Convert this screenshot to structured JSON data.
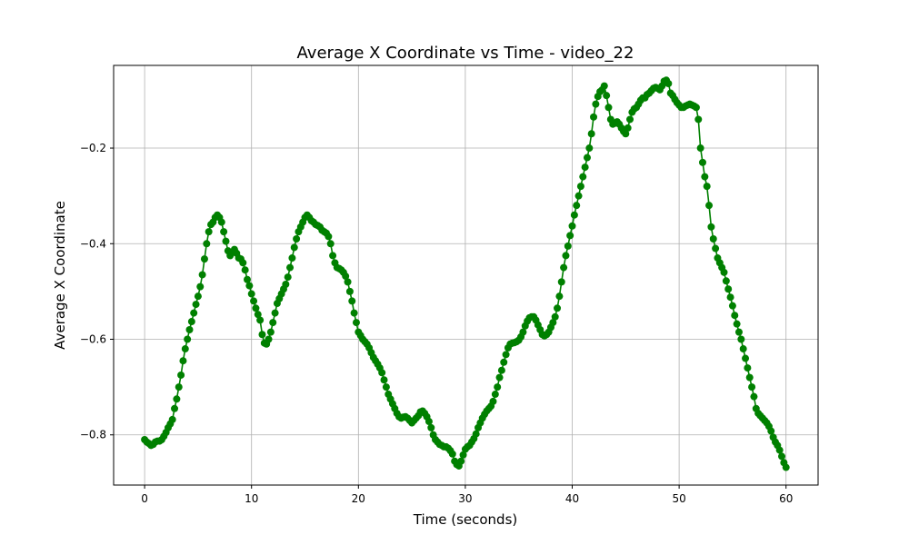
{
  "chart_data": {
    "type": "line",
    "title": "Average X Coordinate vs Time - video_22",
    "xlabel": "Time (seconds)",
    "ylabel": "Average X Coordinate",
    "xlim": [
      -2.9,
      63.0
    ],
    "ylim": [
      -0.905,
      -0.027
    ],
    "xticks": [
      0,
      10,
      20,
      30,
      40,
      50,
      60
    ],
    "yticks": [
      -0.8,
      -0.6,
      -0.4,
      -0.2
    ],
    "xtick_labels": [
      "0",
      "10",
      "20",
      "30",
      "40",
      "50",
      "60"
    ],
    "ytick_labels": [
      "−0.8",
      "−0.6",
      "−0.4",
      "−0.2"
    ],
    "grid": true,
    "series": [
      {
        "color": "#008000",
        "marker": "circle",
        "x": [
          0.0,
          0.2,
          0.4,
          0.6,
          0.8,
          1.0,
          1.2,
          1.4,
          1.6,
          1.8,
          2.0,
          2.2,
          2.4,
          2.6,
          2.8,
          3.0,
          3.2,
          3.4,
          3.6,
          3.8,
          4.0,
          4.2,
          4.4,
          4.6,
          4.8,
          5.0,
          5.2,
          5.4,
          5.6,
          5.8,
          6.0,
          6.2,
          6.4,
          6.6,
          6.8,
          7.0,
          7.2,
          7.4,
          7.6,
          7.8,
          8.0,
          8.2,
          8.4,
          8.6,
          8.8,
          9.0,
          9.2,
          9.4,
          9.6,
          9.8,
          10.0,
          10.2,
          10.4,
          10.6,
          10.8,
          11.0,
          11.2,
          11.4,
          11.6,
          11.8,
          12.0,
          12.2,
          12.4,
          12.6,
          12.8,
          13.0,
          13.2,
          13.4,
          13.6,
          13.8,
          14.0,
          14.2,
          14.4,
          14.6,
          14.8,
          15.0,
          15.2,
          15.4,
          15.6,
          15.8,
          16.0,
          16.2,
          16.4,
          16.6,
          16.8,
          17.0,
          17.2,
          17.4,
          17.6,
          17.8,
          18.0,
          18.2,
          18.4,
          18.6,
          18.8,
          19.0,
          19.2,
          19.4,
          19.6,
          19.8,
          20.0,
          20.2,
          20.4,
          20.6,
          20.8,
          21.0,
          21.2,
          21.4,
          21.6,
          21.8,
          22.0,
          22.2,
          22.4,
          22.6,
          22.8,
          23.0,
          23.2,
          23.4,
          23.6,
          23.8,
          24.0,
          24.2,
          24.4,
          24.6,
          24.8,
          25.0,
          25.2,
          25.4,
          25.6,
          25.8,
          26.0,
          26.2,
          26.4,
          26.6,
          26.8,
          27.0,
          27.2,
          27.4,
          27.6,
          27.8,
          28.0,
          28.2,
          28.4,
          28.6,
          28.8,
          29.0,
          29.2,
          29.4,
          29.6,
          29.8,
          30.0,
          30.2,
          30.4,
          30.6,
          30.8,
          31.0,
          31.2,
          31.4,
          31.6,
          31.8,
          32.0,
          32.2,
          32.4,
          32.6,
          32.8,
          33.0,
          33.2,
          33.4,
          33.6,
          33.8,
          34.0,
          34.2,
          34.4,
          34.6,
          34.8,
          35.0,
          35.2,
          35.4,
          35.6,
          35.8,
          36.0,
          36.2,
          36.4,
          36.6,
          36.8,
          37.0,
          37.2,
          37.4,
          37.6,
          37.8,
          38.0,
          38.2,
          38.4,
          38.6,
          38.8,
          39.0,
          39.2,
          39.4,
          39.6,
          39.8,
          40.0,
          40.2,
          40.4,
          40.6,
          40.8,
          41.0,
          41.2,
          41.4,
          41.6,
          41.8,
          42.0,
          42.2,
          42.4,
          42.6,
          42.8,
          43.0,
          43.2,
          43.4,
          43.6,
          43.8,
          44.0,
          44.2,
          44.4,
          44.6,
          44.8,
          45.0,
          45.2,
          45.4,
          45.6,
          45.8,
          46.0,
          46.2,
          46.4,
          46.6,
          46.8,
          47.0,
          47.2,
          47.4,
          47.6,
          47.8,
          48.0,
          48.2,
          48.4,
          48.6,
          48.8,
          49.0,
          49.2,
          49.4,
          49.6,
          49.8,
          50.0,
          50.2,
          50.4,
          50.6,
          50.8,
          51.0,
          51.2,
          51.4,
          51.6,
          51.8,
          52.0,
          52.2,
          52.4,
          52.6,
          52.8,
          53.0,
          53.2,
          53.4,
          53.6,
          53.8,
          54.0,
          54.2,
          54.4,
          54.6,
          54.8,
          55.0,
          55.2,
          55.4,
          55.6,
          55.8,
          56.0,
          56.2,
          56.4,
          56.6,
          56.8,
          57.0,
          57.2,
          57.4,
          57.6,
          57.8,
          58.0,
          58.2,
          58.4,
          58.6,
          58.8,
          59.0,
          59.2,
          59.4,
          59.6,
          59.8,
          60.0
        ],
        "y": [
          -0.81,
          -0.815,
          -0.818,
          -0.822,
          -0.82,
          -0.815,
          -0.813,
          -0.813,
          -0.81,
          -0.803,
          -0.795,
          -0.785,
          -0.777,
          -0.768,
          -0.745,
          -0.725,
          -0.7,
          -0.675,
          -0.645,
          -0.62,
          -0.6,
          -0.58,
          -0.563,
          -0.545,
          -0.527,
          -0.51,
          -0.49,
          -0.465,
          -0.432,
          -0.4,
          -0.375,
          -0.36,
          -0.355,
          -0.345,
          -0.34,
          -0.345,
          -0.355,
          -0.375,
          -0.395,
          -0.415,
          -0.425,
          -0.418,
          -0.412,
          -0.42,
          -0.43,
          -0.432,
          -0.44,
          -0.455,
          -0.475,
          -0.488,
          -0.505,
          -0.52,
          -0.535,
          -0.548,
          -0.56,
          -0.59,
          -0.608,
          -0.61,
          -0.6,
          -0.585,
          -0.565,
          -0.545,
          -0.525,
          -0.515,
          -0.505,
          -0.495,
          -0.485,
          -0.47,
          -0.45,
          -0.43,
          -0.408,
          -0.39,
          -0.375,
          -0.365,
          -0.355,
          -0.345,
          -0.34,
          -0.345,
          -0.352,
          -0.355,
          -0.36,
          -0.362,
          -0.365,
          -0.372,
          -0.375,
          -0.378,
          -0.385,
          -0.4,
          -0.425,
          -0.44,
          -0.45,
          -0.452,
          -0.455,
          -0.46,
          -0.468,
          -0.48,
          -0.5,
          -0.52,
          -0.545,
          -0.565,
          -0.585,
          -0.592,
          -0.6,
          -0.605,
          -0.61,
          -0.618,
          -0.628,
          -0.638,
          -0.645,
          -0.652,
          -0.66,
          -0.67,
          -0.685,
          -0.7,
          -0.715,
          -0.725,
          -0.735,
          -0.745,
          -0.755,
          -0.762,
          -0.765,
          -0.763,
          -0.762,
          -0.765,
          -0.77,
          -0.775,
          -0.77,
          -0.765,
          -0.76,
          -0.752,
          -0.75,
          -0.755,
          -0.762,
          -0.772,
          -0.785,
          -0.8,
          -0.81,
          -0.815,
          -0.82,
          -0.822,
          -0.825,
          -0.825,
          -0.828,
          -0.833,
          -0.84,
          -0.855,
          -0.862,
          -0.865,
          -0.855,
          -0.842,
          -0.83,
          -0.825,
          -0.822,
          -0.815,
          -0.808,
          -0.798,
          -0.785,
          -0.775,
          -0.765,
          -0.757,
          -0.75,
          -0.745,
          -0.74,
          -0.73,
          -0.715,
          -0.7,
          -0.68,
          -0.665,
          -0.648,
          -0.632,
          -0.618,
          -0.61,
          -0.608,
          -0.607,
          -0.605,
          -0.602,
          -0.595,
          -0.585,
          -0.572,
          -0.562,
          -0.555,
          -0.553,
          -0.553,
          -0.56,
          -0.57,
          -0.58,
          -0.59,
          -0.593,
          -0.59,
          -0.585,
          -0.575,
          -0.565,
          -0.553,
          -0.535,
          -0.51,
          -0.48,
          -0.45,
          -0.425,
          -0.405,
          -0.383,
          -0.363,
          -0.34,
          -0.32,
          -0.3,
          -0.28,
          -0.26,
          -0.24,
          -0.22,
          -0.2,
          -0.17,
          -0.135,
          -0.108,
          -0.092,
          -0.082,
          -0.078,
          -0.07,
          -0.09,
          -0.115,
          -0.14,
          -0.15,
          -0.148,
          -0.145,
          -0.15,
          -0.158,
          -0.165,
          -0.17,
          -0.158,
          -0.14,
          -0.125,
          -0.118,
          -0.115,
          -0.108,
          -0.1,
          -0.095,
          -0.095,
          -0.088,
          -0.085,
          -0.08,
          -0.075,
          -0.073,
          -0.075,
          -0.078,
          -0.07,
          -0.06,
          -0.058,
          -0.065,
          -0.085,
          -0.09,
          -0.098,
          -0.105,
          -0.11,
          -0.115,
          -0.115,
          -0.112,
          -0.11,
          -0.108,
          -0.11,
          -0.112,
          -0.115,
          -0.14,
          -0.2,
          -0.23,
          -0.26,
          -0.28,
          -0.32,
          -0.365,
          -0.39,
          -0.41,
          -0.43,
          -0.44,
          -0.45,
          -0.46,
          -0.478,
          -0.495,
          -0.512,
          -0.53,
          -0.55,
          -0.568,
          -0.585,
          -0.6,
          -0.62,
          -0.64,
          -0.66,
          -0.68,
          -0.7,
          -0.72,
          -0.745,
          -0.755,
          -0.76,
          -0.765,
          -0.77,
          -0.775,
          -0.782,
          -0.792,
          -0.805,
          -0.815,
          -0.822,
          -0.832,
          -0.845,
          -0.858,
          -0.868
        ]
      }
    ]
  }
}
